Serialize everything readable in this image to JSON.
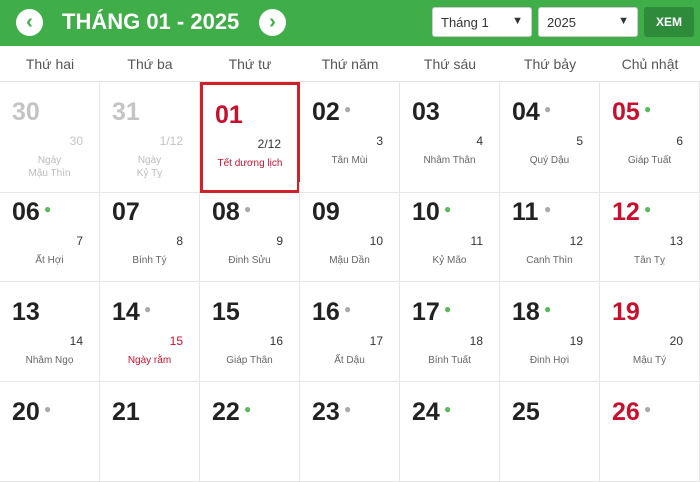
{
  "header": {
    "prev": "‹",
    "next": "›",
    "title": "THÁNG 01 - 2025",
    "month_select": "Tháng 1",
    "year_select": "2025",
    "view_button": "XEM"
  },
  "weekdays": [
    "Thứ hai",
    "Thứ ba",
    "Thứ tư",
    "Thứ năm",
    "Thứ sáu",
    "Thứ bảy",
    "Chủ nhật"
  ],
  "colors": {
    "brand": "#3fae49",
    "holiday": "#c8102e",
    "good_dot": "#5cb85c",
    "neutral_dot": "#aaaaaa"
  },
  "days": [
    {
      "d": "30",
      "l": "30",
      "c": "Ngày\nMậu Thìn",
      "other": true
    },
    {
      "d": "31",
      "l": "1/12",
      "c": "Ngày\nKỷ Tỵ",
      "other": true
    },
    {
      "d": "01",
      "l": "2/12",
      "c": "Tết dương lịch",
      "red": true,
      "today": true,
      "cred": true
    },
    {
      "d": "02",
      "l": "3",
      "c": "Tân Mùi",
      "dot": "grey"
    },
    {
      "d": "03",
      "l": "4",
      "c": "Nhâm Thân"
    },
    {
      "d": "04",
      "l": "5",
      "c": "Quý Dậu",
      "dot": "grey"
    },
    {
      "d": "05",
      "l": "6",
      "c": "Giáp Tuất",
      "red": true,
      "dot": "green"
    },
    {
      "d": "06",
      "l": "7",
      "c": "Ất Hợi",
      "dot": "green"
    },
    {
      "d": "07",
      "l": "8",
      "c": "Bính Tý"
    },
    {
      "d": "08",
      "l": "9",
      "c": "Đinh Sửu",
      "dot": "grey"
    },
    {
      "d": "09",
      "l": "10",
      "c": "Mậu Dần"
    },
    {
      "d": "10",
      "l": "11",
      "c": "Kỷ Mão",
      "dot": "green"
    },
    {
      "d": "11",
      "l": "12",
      "c": "Canh Thìn",
      "dot": "grey"
    },
    {
      "d": "12",
      "l": "13",
      "c": "Tân Tỵ",
      "red": true,
      "dot": "green"
    },
    {
      "d": "13",
      "l": "14",
      "c": "Nhâm Ngọ"
    },
    {
      "d": "14",
      "l": "15",
      "c": "Ngày rằm",
      "dot": "grey",
      "lred": true,
      "cred": true
    },
    {
      "d": "15",
      "l": "16",
      "c": "Giáp Thân"
    },
    {
      "d": "16",
      "l": "17",
      "c": "Ất Dậu",
      "dot": "grey"
    },
    {
      "d": "17",
      "l": "18",
      "c": "Bính Tuất",
      "dot": "green"
    },
    {
      "d": "18",
      "l": "19",
      "c": "Đinh Hợi",
      "dot": "green"
    },
    {
      "d": "19",
      "l": "20",
      "c": "Mậu Tý",
      "red": true
    },
    {
      "d": "20",
      "dot": "grey"
    },
    {
      "d": "21"
    },
    {
      "d": "22",
      "dot": "green"
    },
    {
      "d": "23",
      "dot": "grey"
    },
    {
      "d": "24",
      "dot": "green"
    },
    {
      "d": "25"
    },
    {
      "d": "26",
      "red": true,
      "dot": "grey"
    }
  ]
}
